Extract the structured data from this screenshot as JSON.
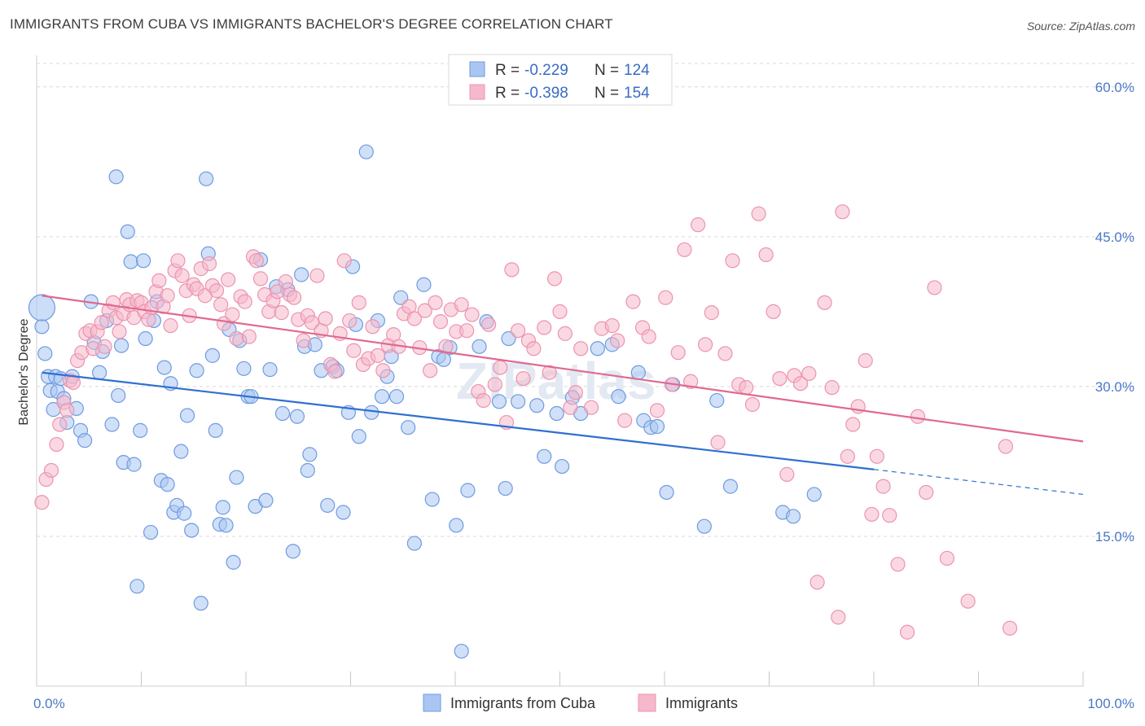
{
  "title": "IMMIGRANTS FROM CUBA VS IMMIGRANTS BACHELOR'S DEGREE CORRELATION CHART",
  "source": "Source: ZipAtlas.com",
  "watermark": "ZIPatlas",
  "colors": {
    "blue_fill": "#a9c6f2",
    "blue_stroke": "#6f9be0",
    "blue_line": "#2f6fd0",
    "pink_fill": "#f6b8cb",
    "pink_stroke": "#ec93b0",
    "pink_line": "#e0698f",
    "tick_text": "#4a78c6",
    "grid": "#d9d9d9"
  },
  "legend": {
    "rows": [
      {
        "r_label": "R =",
        "r_value": "-0.229",
        "n_label": "N =",
        "n_value": "124"
      },
      {
        "r_label": "R =",
        "r_value": "-0.398",
        "n_label": "N =",
        "n_value": "154"
      }
    ]
  },
  "chart_data": {
    "type": "scatter",
    "xlabel": "",
    "ylabel": "Bachelor's Degree",
    "xlim": [
      0,
      100
    ],
    "ylim": [
      0,
      63
    ],
    "x_tick_labels": [
      {
        "value": 0,
        "label": "0.0%"
      },
      {
        "value": 100,
        "label": "100.0%"
      }
    ],
    "y_tick_labels": [
      {
        "value": 15,
        "label": "15.0%"
      },
      {
        "value": 30,
        "label": "30.0%"
      },
      {
        "value": 45,
        "label": "45.0%"
      },
      {
        "value": 60,
        "label": "60.0%"
      }
    ],
    "grid": true,
    "legend_position": "top-center",
    "series": [
      {
        "name": "Immigrants from Cuba",
        "color": "#a9c6f2",
        "trend": {
          "x0": 0.5,
          "y0": 31.4,
          "x1": 80,
          "y1": 21.7,
          "dashed_to_x": 100,
          "dashed_to_y": 19.2
        },
        "points": [
          [
            0.5,
            36.0
          ],
          [
            0.8,
            33.3
          ],
          [
            1.1,
            31.0
          ],
          [
            1.3,
            29.6
          ],
          [
            1.6,
            27.7
          ],
          [
            1.8,
            31.0
          ],
          [
            2.0,
            29.5
          ],
          [
            2.3,
            30.8
          ],
          [
            2.6,
            28.8
          ],
          [
            2.9,
            26.4
          ],
          [
            3.4,
            31.0
          ],
          [
            3.8,
            27.8
          ],
          [
            4.2,
            25.6
          ],
          [
            4.6,
            24.6
          ],
          [
            5.2,
            38.5
          ],
          [
            5.5,
            34.4
          ],
          [
            6.0,
            31.4
          ],
          [
            6.3,
            33.5
          ],
          [
            6.7,
            36.6
          ],
          [
            7.2,
            26.2
          ],
          [
            7.6,
            51.0
          ],
          [
            7.8,
            29.1
          ],
          [
            8.1,
            34.1
          ],
          [
            8.3,
            22.4
          ],
          [
            8.7,
            45.5
          ],
          [
            9.0,
            42.5
          ],
          [
            9.3,
            22.2
          ],
          [
            9.6,
            10.0
          ],
          [
            9.9,
            25.6
          ],
          [
            10.2,
            42.6
          ],
          [
            10.4,
            34.8
          ],
          [
            10.9,
            15.4
          ],
          [
            11.2,
            36.6
          ],
          [
            11.5,
            38.5
          ],
          [
            11.9,
            20.6
          ],
          [
            12.2,
            31.9
          ],
          [
            12.5,
            20.2
          ],
          [
            12.8,
            30.3
          ],
          [
            13.1,
            17.4
          ],
          [
            13.4,
            18.1
          ],
          [
            13.8,
            23.5
          ],
          [
            14.1,
            17.3
          ],
          [
            14.4,
            27.1
          ],
          [
            14.8,
            15.6
          ],
          [
            15.3,
            31.6
          ],
          [
            15.7,
            8.3
          ],
          [
            16.2,
            50.8
          ],
          [
            16.4,
            43.3
          ],
          [
            16.8,
            33.1
          ],
          [
            17.1,
            25.6
          ],
          [
            17.5,
            16.2
          ],
          [
            17.8,
            17.9
          ],
          [
            18.1,
            16.1
          ],
          [
            18.4,
            35.7
          ],
          [
            18.8,
            12.4
          ],
          [
            19.1,
            20.9
          ],
          [
            19.4,
            34.6
          ],
          [
            19.8,
            31.8
          ],
          [
            20.2,
            29.0
          ],
          [
            20.5,
            29.0
          ],
          [
            20.9,
            18.0
          ],
          [
            21.4,
            42.7
          ],
          [
            21.9,
            18.6
          ],
          [
            22.3,
            31.7
          ],
          [
            22.9,
            40.0
          ],
          [
            23.5,
            27.3
          ],
          [
            24.0,
            39.7
          ],
          [
            24.5,
            13.5
          ],
          [
            24.9,
            27.0
          ],
          [
            25.3,
            41.2
          ],
          [
            25.6,
            34.0
          ],
          [
            25.9,
            21.6
          ],
          [
            26.1,
            23.2
          ],
          [
            26.6,
            34.2
          ],
          [
            27.2,
            31.6
          ],
          [
            27.8,
            18.1
          ],
          [
            28.3,
            32.0
          ],
          [
            28.7,
            31.6
          ],
          [
            29.3,
            17.4
          ],
          [
            29.8,
            27.4
          ],
          [
            30.2,
            42.0
          ],
          [
            30.5,
            36.2
          ],
          [
            30.8,
            25.0
          ],
          [
            31.5,
            53.5
          ],
          [
            32.0,
            27.4
          ],
          [
            32.6,
            36.6
          ],
          [
            33.0,
            29.0
          ],
          [
            33.5,
            31.0
          ],
          [
            33.9,
            33.0
          ],
          [
            34.4,
            29.0
          ],
          [
            34.8,
            38.9
          ],
          [
            35.5,
            25.9
          ],
          [
            36.1,
            14.3
          ],
          [
            37.0,
            40.2
          ],
          [
            37.8,
            18.7
          ],
          [
            38.4,
            33.0
          ],
          [
            38.9,
            32.7
          ],
          [
            39.5,
            33.9
          ],
          [
            40.1,
            16.1
          ],
          [
            40.6,
            3.5
          ],
          [
            41.2,
            19.6
          ],
          [
            42.3,
            34.0
          ],
          [
            43.0,
            36.5
          ],
          [
            44.2,
            28.5
          ],
          [
            44.8,
            19.8
          ],
          [
            45.1,
            34.8
          ],
          [
            46.0,
            28.5
          ],
          [
            47.8,
            28.1
          ],
          [
            48.5,
            23.0
          ],
          [
            49.7,
            27.3
          ],
          [
            50.2,
            22.0
          ],
          [
            51.2,
            28.9
          ],
          [
            52.0,
            27.3
          ],
          [
            53.6,
            33.8
          ],
          [
            55.0,
            34.2
          ],
          [
            55.6,
            29.0
          ],
          [
            57.5,
            31.4
          ],
          [
            58.0,
            26.6
          ],
          [
            58.7,
            25.9
          ],
          [
            59.3,
            26.0
          ],
          [
            60.2,
            19.4
          ],
          [
            60.8,
            30.2
          ],
          [
            63.8,
            16.0
          ],
          [
            65.0,
            28.6
          ],
          [
            66.3,
            20.0
          ],
          [
            71.3,
            17.4
          ],
          [
            72.3,
            17.0
          ],
          [
            74.3,
            19.2
          ]
        ]
      },
      {
        "name": "Immigrants",
        "color": "#f6b8cb",
        "trend": {
          "x0": 0.5,
          "y0": 39.1,
          "x1": 100,
          "y1": 24.5
        },
        "points": [
          [
            0.5,
            18.4
          ],
          [
            0.9,
            20.7
          ],
          [
            1.4,
            21.6
          ],
          [
            1.9,
            24.2
          ],
          [
            2.2,
            26.2
          ],
          [
            2.6,
            28.4
          ],
          [
            2.9,
            27.6
          ],
          [
            3.2,
            30.6
          ],
          [
            3.5,
            30.4
          ],
          [
            3.9,
            32.6
          ],
          [
            4.3,
            33.4
          ],
          [
            4.7,
            35.3
          ],
          [
            5.1,
            35.6
          ],
          [
            5.4,
            33.8
          ],
          [
            5.8,
            35.5
          ],
          [
            6.2,
            36.4
          ],
          [
            6.5,
            34.0
          ],
          [
            6.9,
            37.6
          ],
          [
            7.3,
            38.4
          ],
          [
            7.6,
            36.9
          ],
          [
            7.9,
            35.5
          ],
          [
            8.3,
            37.3
          ],
          [
            8.6,
            38.7
          ],
          [
            8.9,
            38.2
          ],
          [
            9.3,
            36.9
          ],
          [
            9.6,
            38.6
          ],
          [
            10.0,
            38.4
          ],
          [
            10.3,
            37.5
          ],
          [
            10.7,
            36.7
          ],
          [
            11.0,
            37.9
          ],
          [
            11.4,
            39.5
          ],
          [
            11.7,
            40.6
          ],
          [
            12.1,
            38.0
          ],
          [
            12.5,
            39.1
          ],
          [
            12.8,
            36.1
          ],
          [
            13.2,
            41.6
          ],
          [
            13.5,
            42.6
          ],
          [
            13.9,
            41.1
          ],
          [
            14.3,
            39.6
          ],
          [
            14.6,
            37.1
          ],
          [
            15.0,
            40.2
          ],
          [
            15.3,
            39.8
          ],
          [
            15.7,
            41.8
          ],
          [
            16.1,
            39.1
          ],
          [
            16.5,
            42.3
          ],
          [
            16.8,
            40.1
          ],
          [
            17.2,
            39.6
          ],
          [
            17.6,
            38.2
          ],
          [
            17.9,
            36.3
          ],
          [
            18.3,
            40.7
          ],
          [
            18.7,
            37.2
          ],
          [
            19.1,
            34.8
          ],
          [
            19.5,
            39.0
          ],
          [
            19.9,
            38.5
          ],
          [
            20.3,
            35.0
          ],
          [
            20.7,
            43.0
          ],
          [
            21.0,
            42.6
          ],
          [
            21.4,
            40.8
          ],
          [
            21.8,
            39.2
          ],
          [
            22.2,
            37.5
          ],
          [
            22.6,
            38.6
          ],
          [
            23.0,
            39.5
          ],
          [
            23.4,
            37.4
          ],
          [
            23.8,
            40.5
          ],
          [
            24.2,
            39.2
          ],
          [
            24.6,
            38.9
          ],
          [
            25.0,
            36.7
          ],
          [
            25.5,
            34.6
          ],
          [
            25.9,
            37.1
          ],
          [
            26.3,
            36.4
          ],
          [
            26.8,
            41.1
          ],
          [
            27.2,
            35.6
          ],
          [
            27.6,
            36.8
          ],
          [
            28.1,
            32.2
          ],
          [
            28.5,
            31.5
          ],
          [
            29.0,
            35.3
          ],
          [
            29.4,
            42.6
          ],
          [
            29.9,
            36.6
          ],
          [
            30.3,
            33.6
          ],
          [
            30.8,
            38.4
          ],
          [
            31.2,
            32.2
          ],
          [
            31.7,
            32.8
          ],
          [
            32.1,
            36.0
          ],
          [
            32.6,
            33.1
          ],
          [
            33.1,
            31.6
          ],
          [
            33.6,
            34.1
          ],
          [
            34.1,
            35.2
          ],
          [
            34.6,
            34.0
          ],
          [
            35.1,
            37.3
          ],
          [
            35.6,
            38.0
          ],
          [
            36.1,
            36.8
          ],
          [
            36.6,
            33.9
          ],
          [
            37.1,
            37.6
          ],
          [
            37.6,
            31.6
          ],
          [
            38.1,
            38.4
          ],
          [
            38.6,
            36.5
          ],
          [
            39.1,
            34.0
          ],
          [
            39.6,
            37.7
          ],
          [
            40.1,
            35.5
          ],
          [
            40.6,
            38.2
          ],
          [
            41.1,
            35.6
          ],
          [
            41.6,
            37.2
          ],
          [
            42.2,
            29.5
          ],
          [
            42.7,
            28.6
          ],
          [
            43.2,
            36.2
          ],
          [
            43.8,
            30.2
          ],
          [
            44.3,
            31.9
          ],
          [
            44.9,
            26.4
          ],
          [
            45.4,
            41.7
          ],
          [
            46.0,
            35.6
          ],
          [
            46.5,
            30.8
          ],
          [
            47.0,
            34.6
          ],
          [
            47.5,
            33.8
          ],
          [
            48.5,
            35.9
          ],
          [
            49.0,
            31.4
          ],
          [
            49.5,
            40.8
          ],
          [
            50.0,
            37.5
          ],
          [
            50.5,
            35.3
          ],
          [
            51.0,
            27.9
          ],
          [
            51.5,
            29.4
          ],
          [
            52.0,
            33.8
          ],
          [
            53.0,
            27.9
          ],
          [
            54.0,
            35.8
          ],
          [
            55.0,
            36.1
          ],
          [
            55.5,
            34.6
          ],
          [
            56.2,
            26.6
          ],
          [
            57.0,
            38.5
          ],
          [
            57.9,
            35.9
          ],
          [
            58.5,
            35.0
          ],
          [
            59.3,
            27.6
          ],
          [
            60.1,
            38.9
          ],
          [
            60.7,
            30.2
          ],
          [
            61.3,
            33.4
          ],
          [
            61.9,
            43.7
          ],
          [
            62.5,
            30.5
          ],
          [
            63.2,
            46.2
          ],
          [
            63.9,
            34.2
          ],
          [
            64.5,
            37.4
          ],
          [
            65.1,
            24.4
          ],
          [
            65.8,
            33.3
          ],
          [
            66.5,
            42.6
          ],
          [
            67.1,
            30.2
          ],
          [
            67.8,
            29.9
          ],
          [
            68.4,
            28.2
          ],
          [
            69.0,
            47.3
          ],
          [
            69.7,
            43.2
          ],
          [
            70.4,
            37.5
          ],
          [
            71.0,
            30.8
          ],
          [
            71.7,
            21.2
          ],
          [
            72.4,
            31.1
          ],
          [
            73.0,
            30.3
          ],
          [
            73.8,
            31.3
          ],
          [
            74.6,
            10.4
          ],
          [
            75.3,
            38.4
          ],
          [
            76.0,
            29.9
          ],
          [
            76.6,
            6.9
          ],
          [
            77.0,
            47.5
          ],
          [
            77.5,
            23.0
          ],
          [
            78.0,
            26.2
          ],
          [
            78.5,
            28.0
          ],
          [
            79.2,
            32.6
          ],
          [
            79.8,
            17.2
          ],
          [
            80.3,
            23.0
          ],
          [
            80.9,
            20.0
          ],
          [
            81.5,
            17.1
          ],
          [
            82.3,
            12.2
          ],
          [
            83.2,
            5.4
          ],
          [
            84.2,
            27.0
          ],
          [
            85.0,
            19.4
          ],
          [
            85.8,
            39.9
          ],
          [
            87.0,
            12.8
          ],
          [
            89.0,
            8.5
          ],
          [
            92.6,
            24.0
          ],
          [
            93.0,
            5.8
          ]
        ]
      }
    ]
  }
}
